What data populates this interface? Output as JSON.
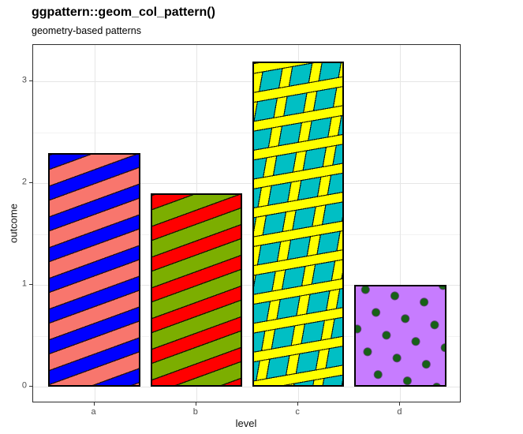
{
  "header": {
    "title": "ggpattern::geom_col_pattern()",
    "subtitle": "geometry-based patterns"
  },
  "chart_data": {
    "type": "bar",
    "title": "ggpattern::geom_col_pattern()",
    "subtitle": "geometry-based patterns",
    "xlabel": "level",
    "ylabel": "outcome",
    "categories": [
      "a",
      "b",
      "c",
      "d"
    ],
    "values": [
      2.3,
      1.9,
      3.2,
      1.0
    ],
    "y_ticks": [
      0,
      1,
      2,
      3
    ],
    "y_minor_ticks": [
      0.5,
      1.5,
      2.5
    ],
    "ylim": [
      0,
      3.2
    ],
    "grid": "on",
    "legend": "none",
    "bars": [
      {
        "category": "a",
        "value": 2.3,
        "fill": "#F8766D",
        "pattern": "stripe",
        "pattern_fill": "#0000FF"
      },
      {
        "category": "b",
        "value": 1.9,
        "fill": "#7CAE00",
        "pattern": "stripe",
        "pattern_fill": "#FF0000"
      },
      {
        "category": "c",
        "value": 3.2,
        "fill": "#00BFC4",
        "pattern": "crosshatch",
        "pattern_fill": "#FFFF00"
      },
      {
        "category": "d",
        "value": 1.0,
        "fill": "#C77CFF",
        "pattern": "circle",
        "pattern_fill": "#176117"
      }
    ],
    "colors": {
      "background": "#FFFFFF",
      "grid_major": "#E6E6E6",
      "grid_minor": "#F2F2F2",
      "panel_border": "#2D2D2D",
      "tick_mark": "#333333",
      "tick_label": "#4D4D4D",
      "bar_border": "#000000"
    }
  }
}
